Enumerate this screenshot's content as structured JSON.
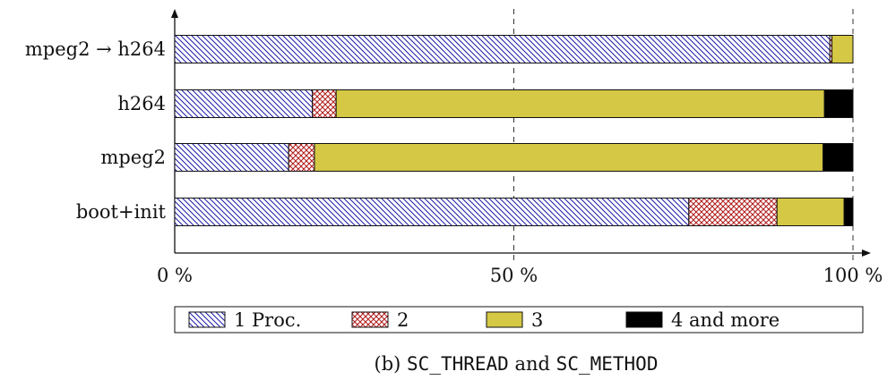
{
  "chart_data": {
    "type": "bar",
    "orientation": "horizontal",
    "stacked": true,
    "categories": [
      "mpeg2 → h264",
      "h264",
      "mpeg2",
      "boot+init"
    ],
    "series": [
      {
        "name": "1 Proc.",
        "values": [
          96.6,
          20.3,
          16.8,
          75.8
        ],
        "color": "#1a1aa6",
        "pattern": "diagonal-hatch"
      },
      {
        "name": "2",
        "values": [
          0.3,
          3.5,
          3.8,
          13.0
        ],
        "color": "#b01818",
        "pattern": "crosshatch"
      },
      {
        "name": "3",
        "values": [
          3.1,
          72.0,
          75.0,
          9.9
        ],
        "color": "#d4c845",
        "pattern": "solid"
      },
      {
        "name": "4 and more",
        "values": [
          0.0,
          4.2,
          4.4,
          1.3
        ],
        "color": "#000000",
        "pattern": "solid"
      }
    ],
    "xlim": [
      0,
      100
    ],
    "xticks": [
      0,
      50,
      100
    ],
    "xtick_labels": [
      "0 %",
      "50 %",
      "100 %"
    ],
    "grid": "vertical dashed at 50 and 100",
    "legend_position": "bottom",
    "caption_prefix": "(b) ",
    "caption_code_1": "SC_THREAD",
    "caption_mid": " and ",
    "caption_code_2": "SC_METHOD"
  }
}
